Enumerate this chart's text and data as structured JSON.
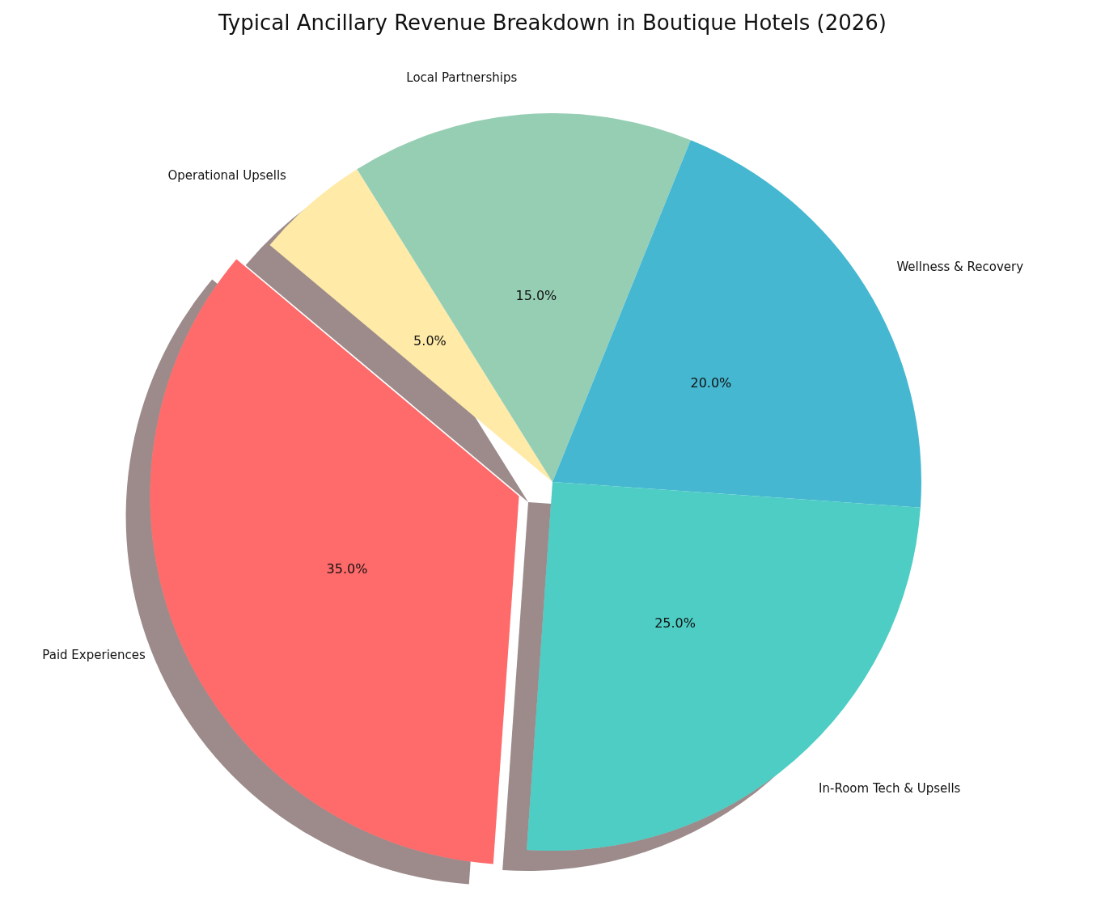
{
  "chart_data": {
    "type": "pie",
    "title": "Typical Ancillary Revenue Breakdown in Boutique Hotels (2026)",
    "categories": [
      "Operational Upsells",
      "Local Partnerships",
      "Wellness & Recovery",
      "In-Room Tech & Upsells",
      "Paid Experiences"
    ],
    "values": [
      5,
      15,
      20,
      25,
      35
    ],
    "value_labels": [
      "5.0%",
      "15.0%",
      "20.0%",
      "25.0%",
      "35.0%"
    ],
    "colors": [
      "#ffeaa7",
      "#96ceb4",
      "#45b7d1",
      "#4ecdc4",
      "#ff6b6b"
    ],
    "legend": false
  }
}
